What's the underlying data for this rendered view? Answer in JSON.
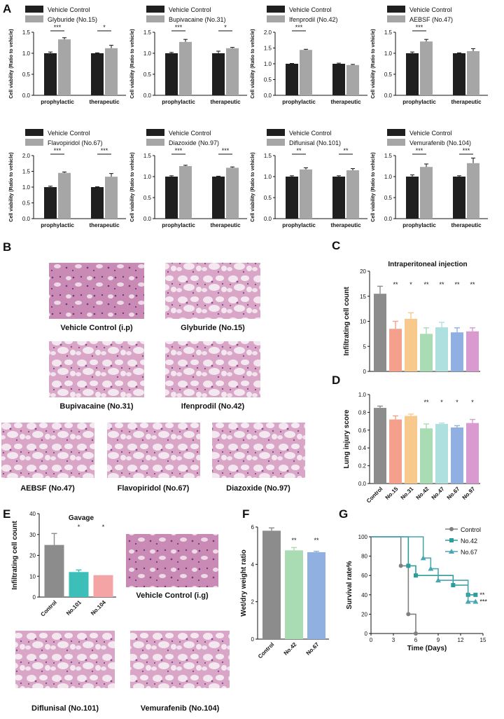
{
  "panel_labels": {
    "A": "A",
    "B": "B",
    "C": "C",
    "D": "D",
    "E": "E",
    "F": "F",
    "G": "G"
  },
  "colors": {
    "vehicle": "#1f1f1f",
    "drug": "#a6a6a6",
    "control_gray": "#8c8c8c",
    "no15": "#f4a08c",
    "no31": "#f8c98c",
    "no42": "#a9dcb2",
    "no47": "#aee0e0",
    "no67": "#8fb0e0",
    "no97": "#d99ad0",
    "no101": "#3bbfb8",
    "no104": "#f4a4a4",
    "survival_control": "#808080",
    "survival_no42": "#2f9c9c",
    "survival_no67": "#4aa6b0"
  },
  "chart_data": [
    {
      "id": "A1",
      "type": "bar",
      "title": "",
      "ylabel": "Cell viability (Ratio to  vehicle)",
      "ylim": [
        0,
        1.5
      ],
      "yticks": [
        "0.0",
        "0.5",
        "1.0",
        "1.5"
      ],
      "categories": [
        "prophylactic",
        "therapeutic"
      ],
      "series": [
        {
          "name": "Vehicle Control",
          "values": [
            1.0,
            1.0
          ],
          "err": [
            0.03,
            0.01
          ]
        },
        {
          "name": "Glyburide (No.15)",
          "values": [
            1.33,
            1.12
          ],
          "err": [
            0.04,
            0.07
          ]
        }
      ],
      "significance": [
        "***",
        "*"
      ]
    },
    {
      "id": "A2",
      "type": "bar",
      "title": "",
      "ylabel": "Cell viability (Ratio to  vehicle)",
      "ylim": [
        0,
        1.5
      ],
      "yticks": [
        "0.0",
        "0.5",
        "1.0",
        "1.5"
      ],
      "categories": [
        "prophylactic",
        "therapeutic"
      ],
      "series": [
        {
          "name": "Vehicle Control",
          "values": [
            1.0,
            1.0
          ],
          "err": [
            0.02,
            0.05
          ]
        },
        {
          "name": "Bupivacaine (No.31)",
          "values": [
            1.27,
            1.12
          ],
          "err": [
            0.06,
            0.02
          ]
        }
      ],
      "significance": [
        "***",
        "*"
      ]
    },
    {
      "id": "A3",
      "type": "bar",
      "title": "",
      "ylabel": "Cell viability (Ratio to  vehicle)",
      "ylim": [
        0,
        2.0
      ],
      "yticks": [
        "0.0",
        "0.5",
        "1.0",
        "1.5",
        "2.0"
      ],
      "categories": [
        "prophylactic",
        "therapeutic"
      ],
      "series": [
        {
          "name": "Vehicle Control",
          "values": [
            1.0,
            1.0
          ],
          "err": [
            0.01,
            0.02
          ]
        },
        {
          "name": "Ifenprodil (No.42)",
          "values": [
            1.44,
            0.96
          ],
          "err": [
            0.02,
            0.02
          ]
        }
      ],
      "significance": [
        "***",
        ""
      ]
    },
    {
      "id": "A4",
      "type": "bar",
      "title": "",
      "ylabel": "Cell viability (Ratio to  vehicle)",
      "ylim": [
        0,
        1.5
      ],
      "yticks": [
        "0.0",
        "0.5",
        "1.0",
        "1.5"
      ],
      "categories": [
        "prophylactic",
        "therapeutic"
      ],
      "series": [
        {
          "name": "Vehicle Control",
          "values": [
            1.0,
            1.0
          ],
          "err": [
            0.03,
            0.01
          ]
        },
        {
          "name": "AEBSF (No.47)",
          "values": [
            1.28,
            1.05
          ],
          "err": [
            0.05,
            0.06
          ]
        }
      ],
      "significance": [
        "***",
        ""
      ]
    },
    {
      "id": "A5",
      "type": "bar",
      "title": "",
      "ylabel": "Cell viability (Ratio to  vehicle)",
      "ylim": [
        0,
        2.0
      ],
      "yticks": [
        "0.0",
        "0.5",
        "1.0",
        "1.5",
        "2.0"
      ],
      "categories": [
        "prophylactic",
        "therapeutic"
      ],
      "series": [
        {
          "name": "Vehicle Control",
          "values": [
            1.0,
            1.0
          ],
          "err": [
            0.03,
            0.01
          ]
        },
        {
          "name": "Flavopiridol (No.67)",
          "values": [
            1.45,
            1.33
          ],
          "err": [
            0.03,
            0.1
          ]
        }
      ],
      "significance": [
        "***",
        "***"
      ]
    },
    {
      "id": "A6",
      "type": "bar",
      "title": "",
      "ylabel": "Cell viability (Ratio to  vehicle)",
      "ylim": [
        0,
        1.5
      ],
      "yticks": [
        "0.0",
        "0.5",
        "1.0",
        "1.5"
      ],
      "categories": [
        "prophylactic",
        "therapeutic"
      ],
      "series": [
        {
          "name": "Vehicle Control",
          "values": [
            1.0,
            1.0
          ],
          "err": [
            0.02,
            0.01
          ]
        },
        {
          "name": "Diazoxide (No.97)",
          "values": [
            1.25,
            1.21
          ],
          "err": [
            0.02,
            0.02
          ]
        }
      ],
      "significance": [
        "***",
        "***"
      ]
    },
    {
      "id": "A7",
      "type": "bar",
      "title": "",
      "ylabel": "Cell viability (Ratio to  vehicle)",
      "ylim": [
        0,
        1.5
      ],
      "yticks": [
        "0.0",
        "0.5",
        "1.0",
        "1.5"
      ],
      "categories": [
        "prophylactic",
        "therapeutic"
      ],
      "series": [
        {
          "name": "Vehicle Control",
          "values": [
            1.0,
            1.0
          ],
          "err": [
            0.02,
            0.02
          ]
        },
        {
          "name": "Diflunisal (No.101)",
          "values": [
            1.17,
            1.15
          ],
          "err": [
            0.04,
            0.04
          ]
        }
      ],
      "significance": [
        "**",
        "**"
      ]
    },
    {
      "id": "A8",
      "type": "bar",
      "title": "",
      "ylabel": "Cell viability (Ratio to  vehicle)",
      "ylim": [
        0,
        1.5
      ],
      "yticks": [
        "0.0",
        "0.5",
        "1.0",
        "1.5"
      ],
      "categories": [
        "prophylactic",
        "therapeutic"
      ],
      "series": [
        {
          "name": "Vehicle Control",
          "values": [
            1.0,
            1.0
          ],
          "err": [
            0.04,
            0.02
          ]
        },
        {
          "name": "Vemurafenib (No.104)",
          "values": [
            1.23,
            1.32
          ],
          "err": [
            0.07,
            0.12
          ]
        }
      ],
      "significance": [
        "***",
        "***"
      ]
    },
    {
      "id": "C",
      "type": "bar",
      "title": "Intraperitoneal injection",
      "ylabel": "Infiltrating cell count",
      "ylim": [
        0,
        20
      ],
      "yticks": [
        "0",
        "5",
        "10",
        "15",
        "20"
      ],
      "categories": [
        "Control",
        "No.15",
        "No.31",
        "No.42",
        "No.47",
        "No.67",
        "No.97"
      ],
      "values": [
        15.5,
        8.5,
        10.5,
        7.5,
        8.8,
        7.8,
        8.0
      ],
      "err": [
        1.5,
        1.5,
        1.2,
        1.2,
        1.0,
        0.9,
        0.7
      ],
      "significance": [
        "",
        "**",
        "*",
        "**",
        "**",
        "**",
        "**"
      ]
    },
    {
      "id": "D",
      "type": "bar",
      "title": "",
      "ylabel": "Lung injury score",
      "ylim": [
        0,
        1.0
      ],
      "yticks": [
        "0.0",
        "0.2",
        "0.4",
        "0.6",
        "0.8",
        "1.0"
      ],
      "categories": [
        "Control",
        "No.15",
        "No.31",
        "No.42",
        "No.47",
        "No.67",
        "No.97"
      ],
      "values": [
        0.85,
        0.72,
        0.76,
        0.62,
        0.67,
        0.63,
        0.68
      ],
      "err": [
        0.02,
        0.04,
        0.02,
        0.05,
        0.01,
        0.02,
        0.04
      ],
      "significance": [
        "",
        "",
        "",
        "**",
        "*",
        "*",
        "*"
      ]
    },
    {
      "id": "E",
      "type": "bar",
      "title": "Gavage",
      "ylabel": "Infiltrating cell count",
      "ylim": [
        0,
        40
      ],
      "yticks": [
        "0",
        "10",
        "20",
        "30",
        "40"
      ],
      "categories": [
        "Control",
        "No.101",
        "No.104"
      ],
      "values": [
        25,
        12,
        10.5
      ],
      "err": [
        5.5,
        1.0,
        0
      ],
      "significance": [
        "",
        "*",
        "*"
      ]
    },
    {
      "id": "F",
      "type": "bar",
      "title": "",
      "ylabel": "Wet/dry weight ratio",
      "ylim": [
        0,
        6
      ],
      "yticks": [
        "0",
        "2",
        "4",
        "6"
      ],
      "categories": [
        "Control",
        "No.42",
        "No.67"
      ],
      "values": [
        5.8,
        4.75,
        4.65
      ],
      "err": [
        0.15,
        0.15,
        0.05
      ],
      "significance": [
        "",
        "**",
        "**"
      ]
    },
    {
      "id": "G",
      "type": "line",
      "title": "",
      "xlabel": "Time (Days)",
      "ylabel": "Survival rate%",
      "xlim": [
        0,
        15
      ],
      "ylim": [
        0,
        100
      ],
      "xticks": [
        "0",
        "3",
        "6",
        "9",
        "12",
        "15"
      ],
      "yticks": [
        "0",
        "20",
        "40",
        "60",
        "80",
        "100"
      ],
      "series": [
        {
          "name": "Control",
          "points": [
            [
              0,
              100
            ],
            [
              4,
              100
            ],
            [
              4,
              70
            ],
            [
              5,
              70
            ],
            [
              5,
              20
            ],
            [
              6,
              20
            ],
            [
              6,
              0
            ]
          ],
          "markers": [
            [
              4,
              70
            ],
            [
              5,
              20
            ],
            [
              6,
              0
            ]
          ]
        },
        {
          "name": "No.42",
          "points": [
            [
              0,
              100
            ],
            [
              5,
              100
            ],
            [
              5,
              70
            ],
            [
              6,
              70
            ],
            [
              6,
              60
            ],
            [
              11,
              60
            ],
            [
              11,
              50
            ],
            [
              13,
              50
            ],
            [
              13,
              40
            ],
            [
              14,
              40
            ]
          ],
          "markers": [
            [
              5,
              70
            ],
            [
              6,
              60
            ],
            [
              11,
              50
            ],
            [
              13,
              40
            ],
            [
              14,
              40
            ]
          ]
        },
        {
          "name": "No.67",
          "points": [
            [
              0,
              100
            ],
            [
              7,
              100
            ],
            [
              7,
              78
            ],
            [
              8,
              78
            ],
            [
              8,
              67
            ],
            [
              9,
              67
            ],
            [
              9,
              55
            ],
            [
              13,
              55
            ],
            [
              13,
              33
            ],
            [
              14,
              33
            ]
          ],
          "markers": [
            [
              7,
              78
            ],
            [
              8,
              67
            ],
            [
              9,
              55
            ],
            [
              13,
              33
            ],
            [
              14,
              33
            ]
          ]
        }
      ],
      "significance": [
        "",
        "**",
        "***"
      ]
    }
  ],
  "histology": {
    "b1": "Vehicle Control (i.p)",
    "b2": "Glyburide (No.15)",
    "b3": "Bupivacaine (No.31)",
    "b4": "Ifenprodil (No.42)",
    "b5": "AEBSF (No.47)",
    "b6": "Flavopiridol (No.67)",
    "b7": "Diazoxide (No.97)",
    "e1": "Vehicle Control (i.g)",
    "e2": "Diflunisal  (No.101)",
    "e3": "Vemurafenib (No.104)"
  }
}
